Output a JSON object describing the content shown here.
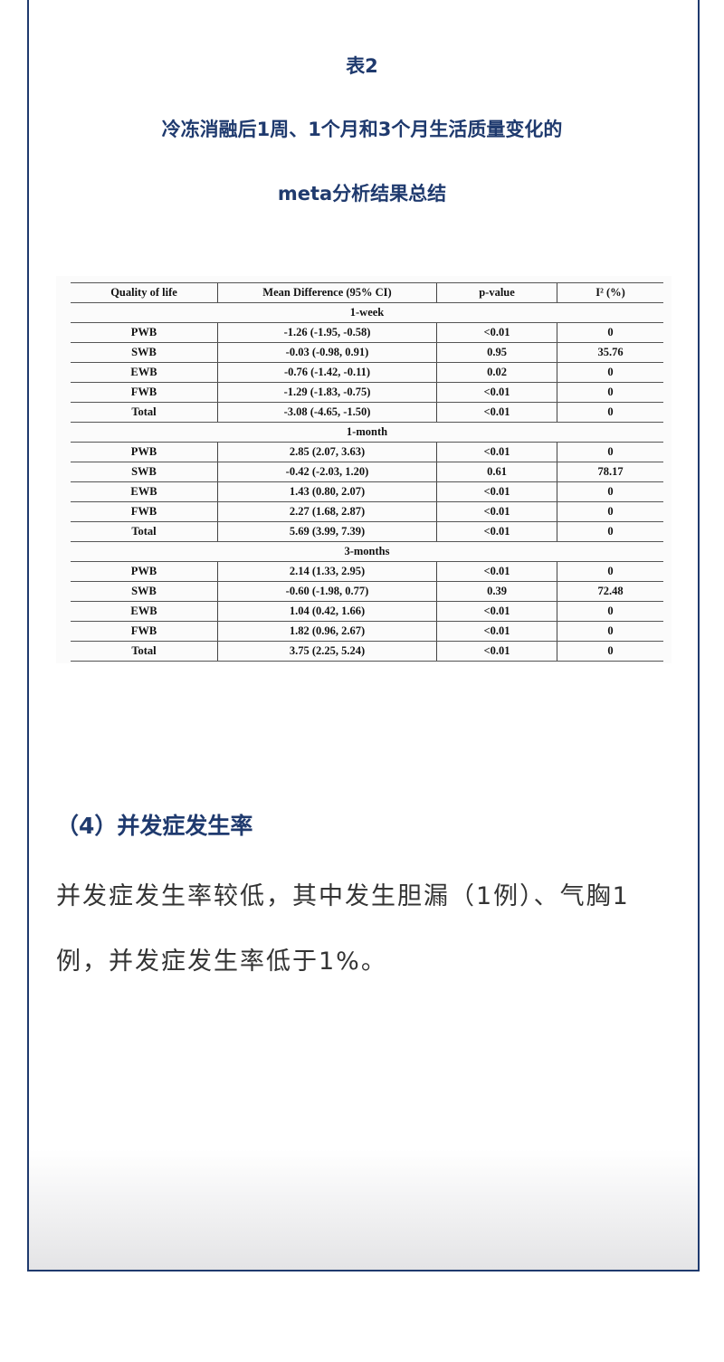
{
  "header": {
    "table_label": "表2",
    "title_line1": "冷冻消融后1周、1个月和3个月生活质量变化的",
    "title_line2": "meta分析结果总结"
  },
  "table": {
    "columns": [
      "Quality of life",
      "Mean Difference (95% CI)",
      "p-value",
      "I² (%)"
    ],
    "groups": [
      {
        "label": "1-week",
        "rows": [
          [
            "PWB",
            "-1.26 (-1.95, -0.58)",
            "<0.01",
            "0"
          ],
          [
            "SWB",
            "-0.03 (-0.98, 0.91)",
            "0.95",
            "35.76"
          ],
          [
            "EWB",
            "-0.76 (-1.42, -0.11)",
            "0.02",
            "0"
          ],
          [
            "FWB",
            "-1.29 (-1.83, -0.75)",
            "<0.01",
            "0"
          ],
          [
            "Total",
            "-3.08 (-4.65, -1.50)",
            "<0.01",
            "0"
          ]
        ]
      },
      {
        "label": "1-month",
        "rows": [
          [
            "PWB",
            "2.85 (2.07, 3.63)",
            "<0.01",
            "0"
          ],
          [
            "SWB",
            "-0.42 (-2.03, 1.20)",
            "0.61",
            "78.17"
          ],
          [
            "EWB",
            "1.43 (0.80, 2.07)",
            "<0.01",
            "0"
          ],
          [
            "FWB",
            "2.27 (1.68, 2.87)",
            "<0.01",
            "0"
          ],
          [
            "Total",
            "5.69 (3.99, 7.39)",
            "<0.01",
            "0"
          ]
        ]
      },
      {
        "label": "3-months",
        "rows": [
          [
            "PWB",
            "2.14 (1.33, 2.95)",
            "<0.01",
            "0"
          ],
          [
            "SWB",
            "-0.60 (-1.98, 0.77)",
            "0.39",
            "72.48"
          ],
          [
            "EWB",
            "1.04 (0.42, 1.66)",
            "<0.01",
            "0"
          ],
          [
            "FWB",
            "1.82 (0.96, 2.67)",
            "<0.01",
            "0"
          ],
          [
            "Total",
            "3.75 (2.25, 5.24)",
            "<0.01",
            "0"
          ]
        ]
      }
    ]
  },
  "section": {
    "heading": "（4）并发症发生率",
    "paragraph": "并发症发生率较低，其中发生胆漏（1例）、气胸1例，并发症发生率低于1%。"
  },
  "colors": {
    "accent": "#1f3a6e"
  }
}
